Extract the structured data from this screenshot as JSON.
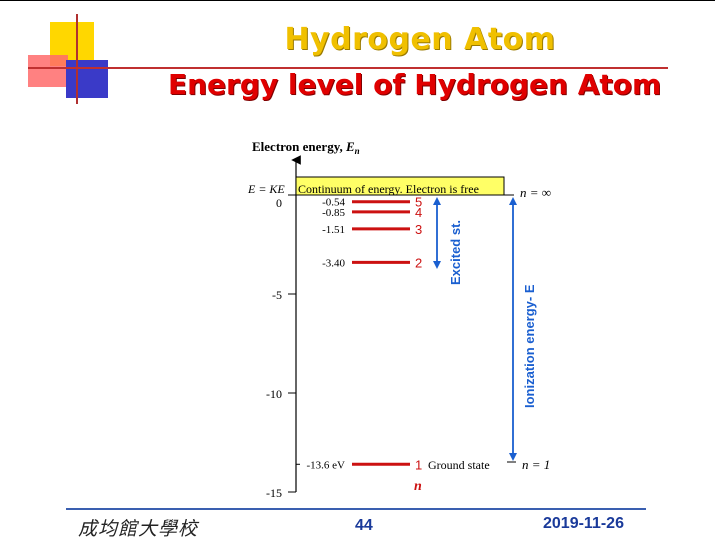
{
  "title": "Hydrogen Atom",
  "subtitle": "Energy level of Hydrogen Atom",
  "diagram": {
    "axis_label": "Electron energy, ",
    "axis_label_var": "E",
    "axis_label_sub": "n",
    "zero_eq": "E = KE",
    "continuum_label": "Continuum of energy. Electron is free",
    "n_inf_label": "n = ∞",
    "n_1_label": "n = 1",
    "n_axis_label": "n",
    "ground_label": "Ground state",
    "excited_label": "Excited st.",
    "ionization_label": "Ionization energy- E",
    "ticks": [
      {
        "value": 0,
        "label": "0"
      },
      {
        "value": -5,
        "label": "-5"
      },
      {
        "value": -10,
        "label": "-10"
      },
      {
        "value": -15,
        "label": "-15"
      }
    ],
    "levels": [
      {
        "n": "1",
        "energy": -13.6,
        "label": "-13.6 eV"
      },
      {
        "n": "2",
        "energy": -3.4,
        "label": "-3.40"
      },
      {
        "n": "3",
        "energy": -1.51,
        "label": "-1.51"
      },
      {
        "n": "4",
        "energy": -0.85,
        "label": "-0.85"
      },
      {
        "n": "5",
        "energy": -0.54,
        "label": "-0.54"
      }
    ],
    "colors": {
      "level": "#cc1111",
      "arrow": "#1a5fd0",
      "continuum": "#ffff66"
    }
  },
  "footer": {
    "school": "成均館大學校",
    "page": "44",
    "date": "2019-11-26"
  }
}
